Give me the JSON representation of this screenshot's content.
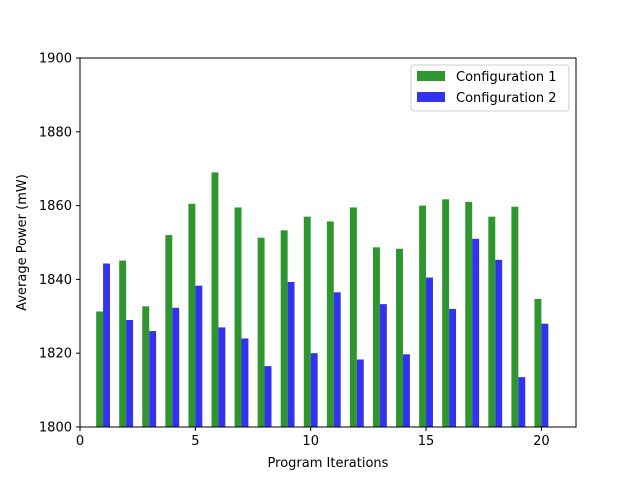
{
  "chart_data": {
    "type": "bar",
    "xlabel": "Program Iterations",
    "ylabel": "Average Power (mW)",
    "xlim": [
      0,
      21.5
    ],
    "ylim": [
      1800,
      1900
    ],
    "xticks": [
      0,
      5,
      10,
      15,
      20
    ],
    "yticks": [
      1800,
      1820,
      1840,
      1860,
      1880,
      1900
    ],
    "grid": false,
    "legend_position": "top-right",
    "x": [
      1,
      2,
      3,
      4,
      5,
      6,
      7,
      8,
      9,
      10,
      11,
      12,
      13,
      14,
      15,
      16,
      17,
      18,
      19,
      20
    ],
    "series": [
      {
        "name": "Configuration 1",
        "color": "#2e962e",
        "values": [
          1831.3,
          1845.1,
          1832.7,
          1852.0,
          1860.5,
          1869.0,
          1859.5,
          1851.3,
          1853.3,
          1857.0,
          1855.7,
          1859.5,
          1848.7,
          1848.3,
          1860.0,
          1861.7,
          1861.0,
          1857.0,
          1859.7,
          1834.7
        ]
      },
      {
        "name": "Configuration 2",
        "color": "#3232f0",
        "values": [
          1844.3,
          1829.0,
          1826.0,
          1832.3,
          1838.3,
          1827.0,
          1824.0,
          1816.5,
          1839.3,
          1820.0,
          1836.5,
          1818.3,
          1833.3,
          1819.7,
          1840.5,
          1832.0,
          1851.0,
          1845.3,
          1813.5,
          1828.0
        ]
      }
    ]
  }
}
